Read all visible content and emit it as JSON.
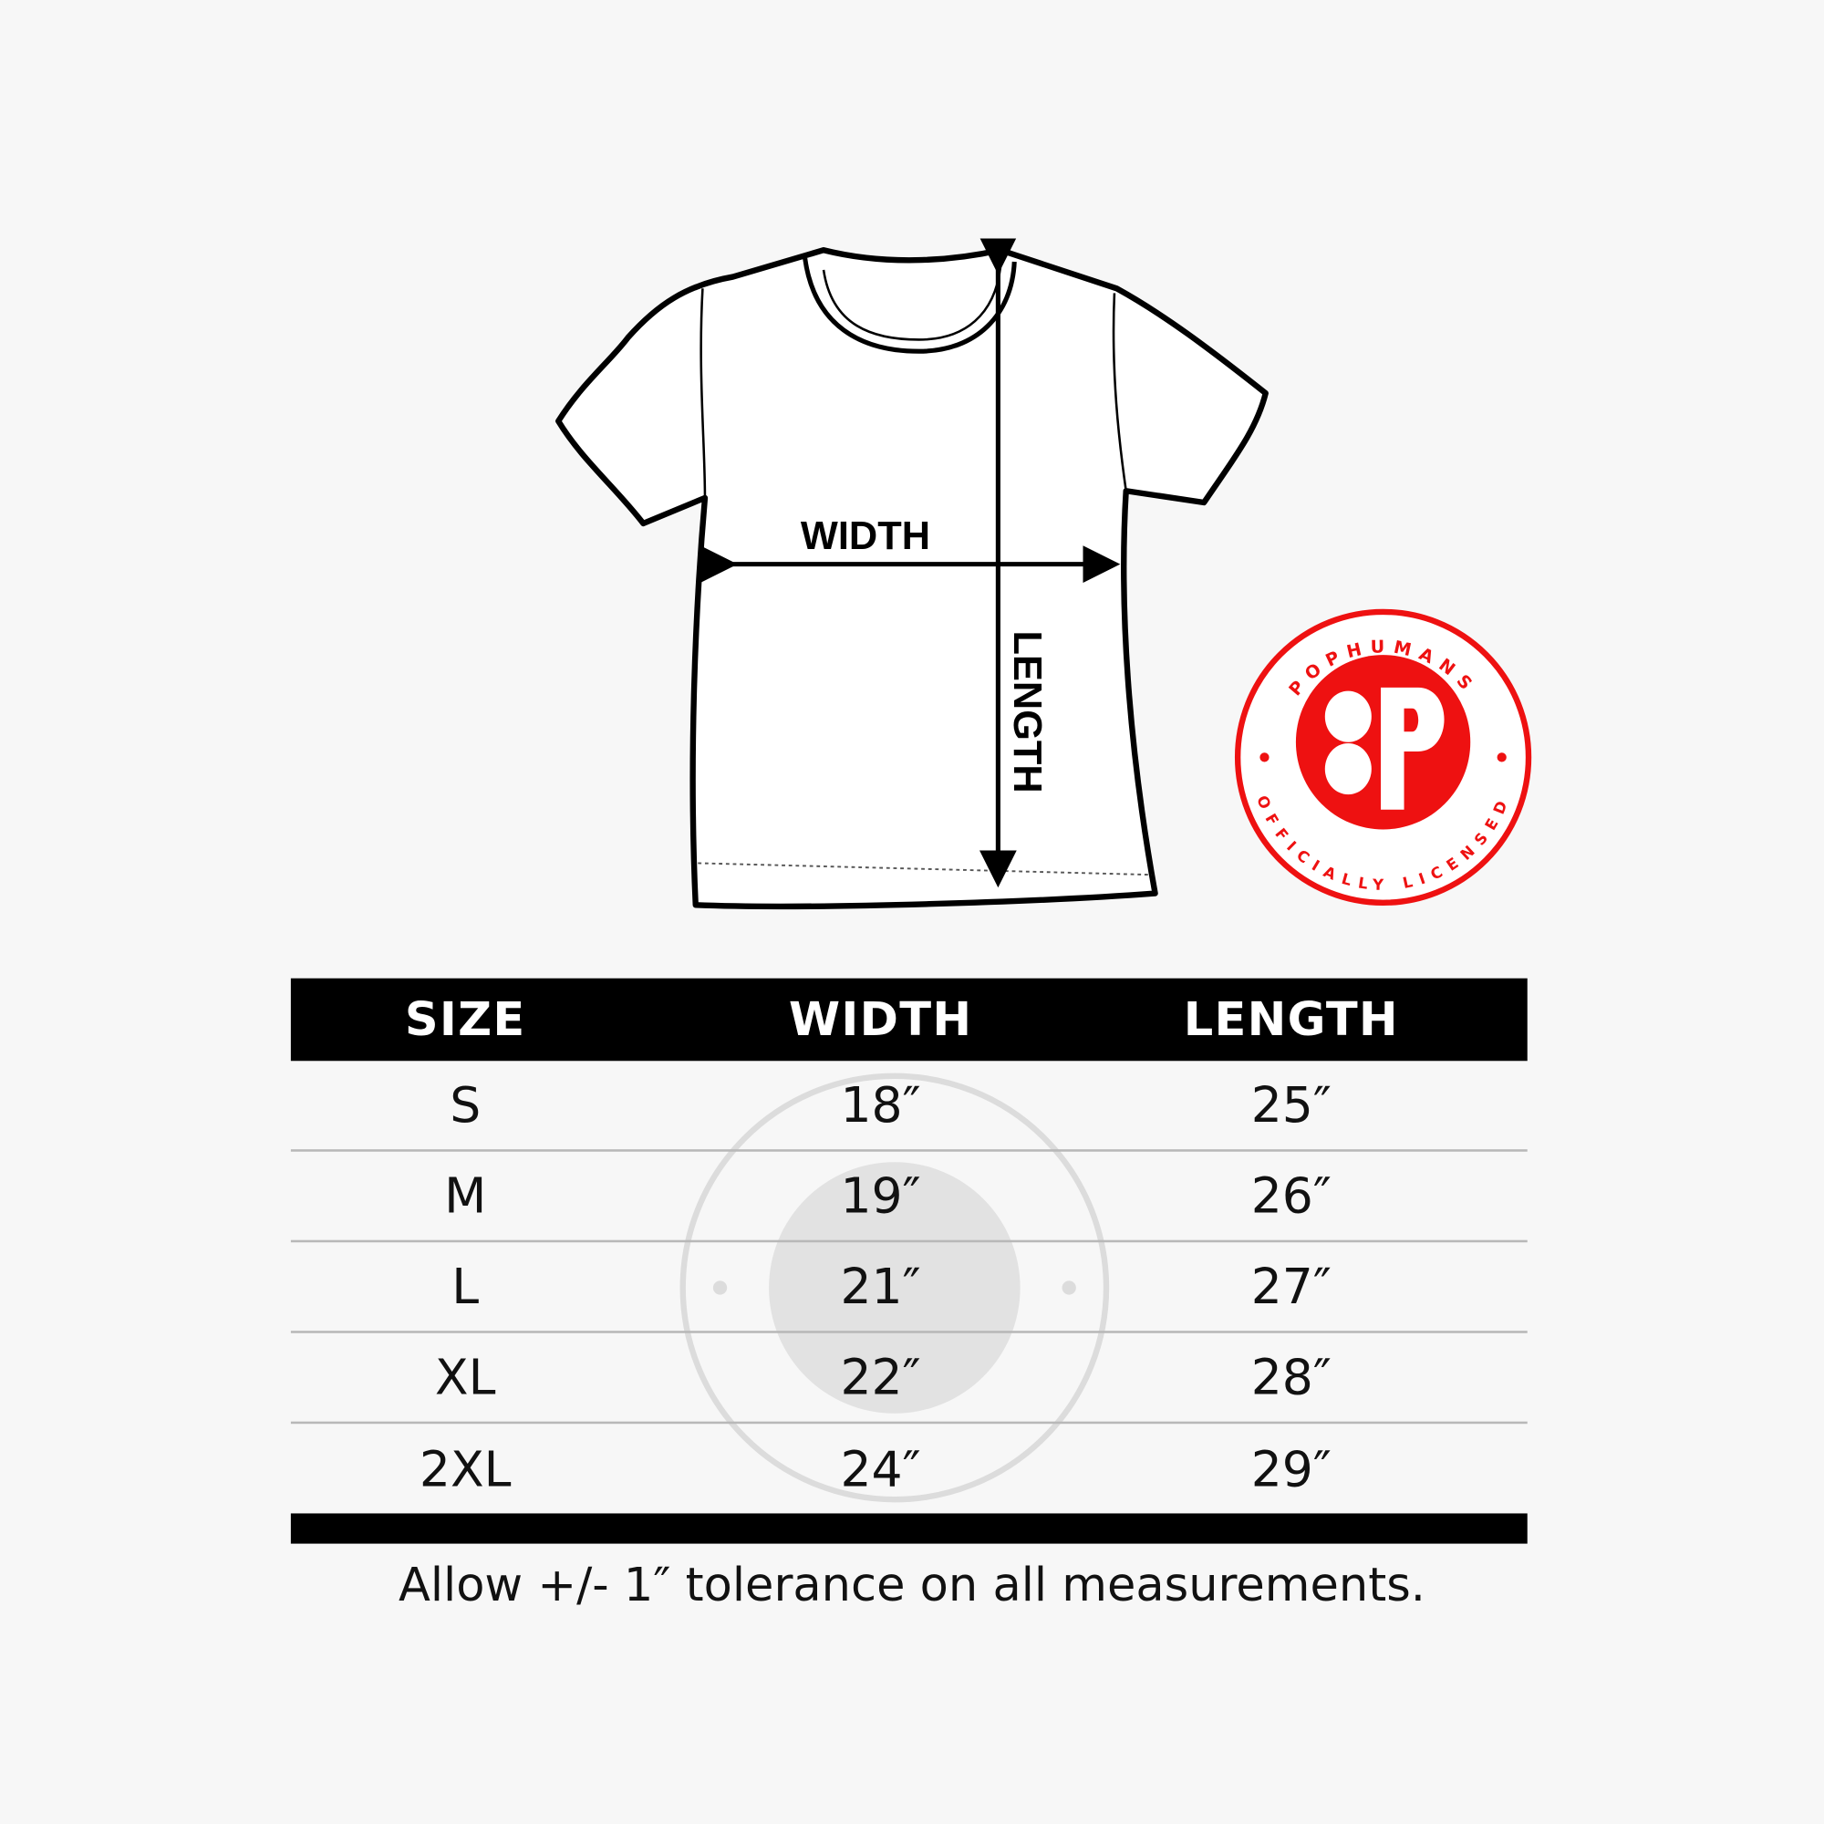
{
  "diagram": {
    "width_label": "WIDTH",
    "length_label": "LENGTH"
  },
  "badge": {
    "brand": "POPHUMANS",
    "tagline": "OFFICIALLY LICENSED",
    "color": "#ee1111"
  },
  "table": {
    "headers": [
      "SIZE",
      "WIDTH",
      "LENGTH"
    ],
    "rows": [
      [
        "S",
        "18″",
        "25″"
      ],
      [
        "M",
        "19″",
        "26″"
      ],
      [
        "L",
        "21″",
        "27″"
      ],
      [
        "XL",
        "22″",
        "28″"
      ],
      [
        "2XL",
        "24″",
        "29″"
      ]
    ]
  },
  "note": "Allow +/- 1″ tolerance on all measurements."
}
